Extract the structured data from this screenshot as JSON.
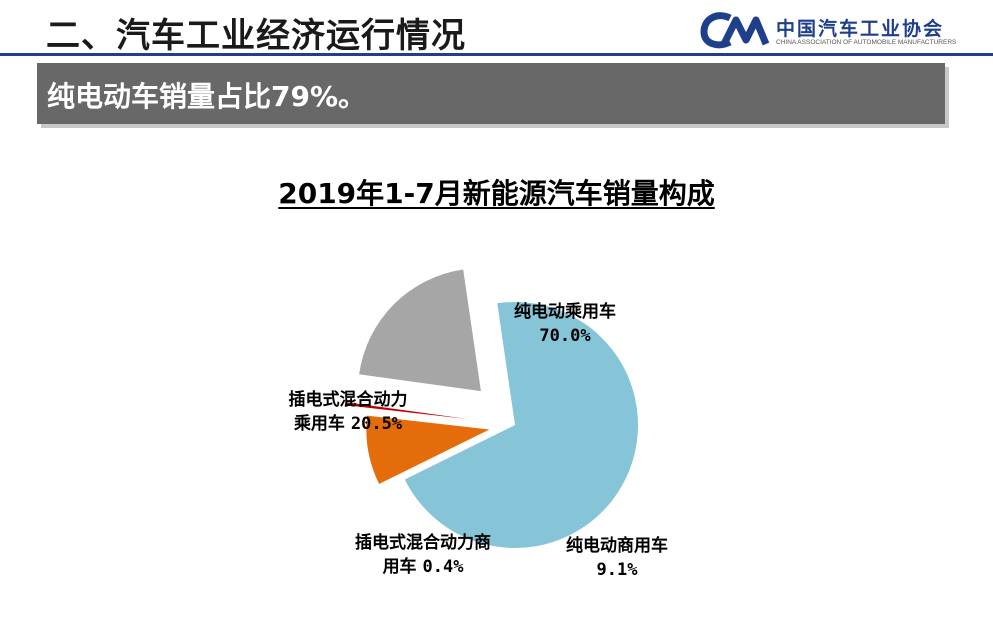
{
  "header": {
    "title": "二、汽车工业经济运行情况",
    "logo_name_cn": "中国汽车工业协会",
    "logo_name_en": "CHINA ASSOCIATION OF AUTOMOBILE MANUFACTURERS",
    "rule_color": "#1f3f8c"
  },
  "banner": {
    "text": "纯电动车销量占比79%。",
    "bg_color": "#686868"
  },
  "chart_data": {
    "type": "pie",
    "title": "2019年1-7月新能源汽车销量构成",
    "unit": "%",
    "slices": [
      {
        "label_line1": "纯电动乘用车",
        "label_line2": "",
        "value_text": "70.0%",
        "value": 70.0,
        "color": "#86c5d8"
      },
      {
        "label_line1": "纯电动商用车",
        "label_line2": "",
        "value_text": "9.1%",
        "value": 9.1,
        "color": "#e46c0a"
      },
      {
        "label_line1": "插电式混合动力商",
        "label_line2": "用车",
        "value_text": "0.4%",
        "value": 0.4,
        "color": "#c00000"
      },
      {
        "label_line1": "插电式混合动力",
        "label_line2": "乘用车",
        "value_text": "20.5%",
        "value": 20.5,
        "color": "#a6a6a6"
      }
    ]
  }
}
